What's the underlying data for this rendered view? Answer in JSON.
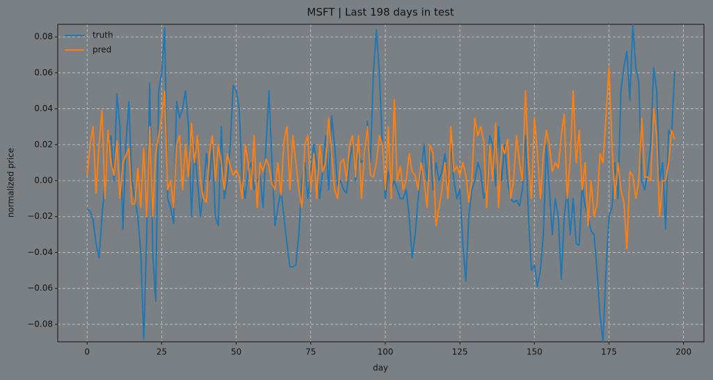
{
  "chart_data": {
    "type": "line",
    "title": "MSFT | Last 198 days in test",
    "xlabel": "day",
    "ylabel": "normalized price",
    "x": [
      0,
      1,
      2,
      3,
      4,
      5,
      6,
      7,
      8,
      9,
      10,
      11,
      12,
      13,
      14,
      15,
      16,
      17,
      18,
      19,
      20,
      21,
      22,
      23,
      24,
      25,
      26,
      27,
      28,
      29,
      30,
      31,
      32,
      33,
      34,
      35,
      36,
      37,
      38,
      39,
      40,
      41,
      42,
      43,
      44,
      45,
      46,
      47,
      48,
      49,
      50,
      51,
      52,
      53,
      54,
      55,
      56,
      57,
      58,
      59,
      60,
      61,
      62,
      63,
      64,
      65,
      66,
      67,
      68,
      69,
      70,
      71,
      72,
      73,
      74,
      75,
      76,
      77,
      78,
      79,
      80,
      81,
      82,
      83,
      84,
      85,
      86,
      87,
      88,
      89,
      90,
      91,
      92,
      93,
      94,
      95,
      96,
      97,
      98,
      99,
      100,
      101,
      102,
      103,
      104,
      105,
      106,
      107,
      108,
      109,
      110,
      111,
      112,
      113,
      114,
      115,
      116,
      117,
      118,
      119,
      120,
      121,
      122,
      123,
      124,
      125,
      126,
      127,
      128,
      129,
      130,
      131,
      132,
      133,
      134,
      135,
      136,
      137,
      138,
      139,
      140,
      141,
      142,
      143,
      144,
      145,
      146,
      147,
      148,
      149,
      150,
      151,
      152,
      153,
      154,
      155,
      156,
      157,
      158,
      159,
      160,
      161,
      162,
      163,
      164,
      165,
      166,
      167,
      168,
      169,
      170,
      171,
      172,
      173,
      174,
      175,
      176,
      177,
      178,
      179,
      180,
      181,
      182,
      183,
      184,
      185,
      186,
      187,
      188,
      189,
      190,
      191,
      192,
      193,
      194,
      195,
      196,
      197
    ],
    "series": [
      {
        "name": "truth",
        "color": "#1f77b4",
        "values": [
          -0.016,
          -0.017,
          -0.022,
          -0.035,
          -0.043,
          -0.02,
          0.0,
          0.02,
          0.025,
          0.0,
          0.048,
          0.03,
          -0.027,
          0.02,
          0.044,
          0.0,
          -0.01,
          -0.02,
          -0.04,
          -0.088,
          -0.03,
          0.054,
          -0.04,
          -0.067,
          0.05,
          0.06,
          0.085,
          -0.01,
          -0.015,
          -0.024,
          0.044,
          0.035,
          0.04,
          0.05,
          0.03,
          -0.02,
          0.02,
          0.0,
          -0.02,
          -0.005,
          0.015,
          0.0,
          0.02,
          -0.02,
          -0.025,
          0.03,
          -0.01,
          0.0,
          0.02,
          0.053,
          0.05,
          0.04,
          0.0,
          -0.01,
          0.005,
          0.01,
          -0.005,
          0.0,
          0.003,
          -0.015,
          0.02,
          0.05,
          0.01,
          -0.025,
          -0.015,
          -0.005,
          -0.02,
          -0.035,
          -0.048,
          -0.048,
          -0.047,
          -0.03,
          0.0,
          0.01,
          -0.01,
          0.005,
          0.02,
          0.01,
          -0.01,
          0.005,
          0.025,
          -0.005,
          0.036,
          0.02,
          -0.003,
          0.0,
          -0.005,
          -0.007,
          0.01,
          0.02,
          0.0,
          0.015,
          0.01,
          0.012,
          0.033,
          0.01,
          0.06,
          0.084,
          0.06,
          0.02,
          -0.01,
          0.005,
          -0.005,
          0.0,
          -0.005,
          -0.01,
          -0.01,
          -0.005,
          -0.02,
          -0.043,
          -0.03,
          -0.01,
          0.005,
          0.02,
          0.0,
          0.02,
          -0.005,
          0.01,
          0.0,
          0.005,
          0.015,
          -0.005,
          0.02,
          0.0,
          -0.01,
          -0.005,
          -0.035,
          -0.056,
          -0.02,
          -0.005,
          0.0,
          0.01,
          0.005,
          -0.01,
          -0.005,
          0.025,
          0.02,
          -0.003,
          0.03,
          0.0,
          0.02,
          0.0,
          -0.01,
          -0.012,
          -0.011,
          -0.014,
          -0.005,
          0.025,
          -0.02,
          -0.05,
          -0.047,
          -0.059,
          -0.05,
          -0.03,
          0.02,
          -0.005,
          -0.03,
          -0.01,
          -0.02,
          -0.055,
          -0.02,
          -0.005,
          -0.03,
          -0.01,
          -0.035,
          -0.036,
          -0.003,
          -0.014,
          -0.02,
          -0.028,
          -0.03,
          -0.05,
          -0.075,
          -0.09,
          -0.05,
          -0.02,
          -0.015,
          0.01,
          -0.01,
          0.05,
          0.063,
          0.072,
          0.045,
          0.087,
          0.063,
          0.055,
          0.0,
          -0.005,
          0.005,
          0.02,
          0.063,
          0.05,
          0.0,
          0.01,
          -0.027,
          0.028,
          0.025,
          0.061
        ]
      },
      {
        "name": "pred",
        "color": "#ff7f0e",
        "values": [
          0.003,
          0.02,
          0.03,
          -0.007,
          0.02,
          0.039,
          -0.01,
          0.028,
          0.01,
          0.003,
          0.022,
          -0.01,
          0.01,
          0.014,
          0.018,
          -0.013,
          -0.013,
          0.007,
          -0.015,
          0.018,
          -0.02,
          0.03,
          -0.02,
          0.015,
          0.025,
          0.035,
          0.05,
          -0.005,
          0.0,
          -0.015,
          0.02,
          0.025,
          -0.005,
          0.02,
          0.002,
          0.032,
          0.01,
          0.025,
          0.0,
          -0.01,
          -0.012,
          0.015,
          0.025,
          0.0,
          0.02,
          0.01,
          -0.005,
          0.015,
          0.008,
          0.003,
          0.006,
          0.002,
          -0.01,
          0.02,
          0.01,
          -0.005,
          0.025,
          -0.015,
          0.01,
          0.005,
          0.012,
          0.008,
          -0.002,
          -0.005,
          0.01,
          -0.008,
          0.022,
          0.03,
          -0.005,
          0.025,
          0.01,
          -0.005,
          -0.015,
          0.02,
          0.025,
          -0.005,
          0.015,
          -0.01,
          0.02,
          0.005,
          0.01,
          0.035,
          0.015,
          -0.005,
          -0.01,
          0.01,
          0.012,
          0.0,
          0.02,
          0.025,
          0.002,
          0.025,
          -0.01,
          0.015,
          0.03,
          0.003,
          0.002,
          0.01,
          0.025,
          0.02,
          -0.005,
          0.03,
          -0.01,
          0.045,
          0.0,
          0.008,
          -0.005,
          0.0,
          0.015,
          0.005,
          0.003,
          -0.005,
          0.01,
          0.0,
          -0.015,
          0.02,
          0.015,
          -0.025,
          -0.015,
          -0.005,
          0.01,
          -0.01,
          0.03,
          0.005,
          0.008,
          0.003,
          0.01,
          0.003,
          -0.012,
          0.0,
          0.035,
          0.025,
          0.03,
          0.022,
          -0.015,
          0.02,
          0.0,
          0.032,
          -0.015,
          0.02,
          0.015,
          0.023,
          -0.01,
          0.0,
          0.025,
          0.01,
          0.0,
          0.05,
          0.01,
          -0.01,
          0.035,
          0.015,
          -0.01,
          0.015,
          0.028,
          0.02,
          0.005,
          0.01,
          0.007,
          0.025,
          0.037,
          -0.01,
          0.012,
          0.05,
          0.01,
          0.028,
          -0.005,
          0.01,
          -0.025,
          0.0,
          -0.02,
          -0.013,
          0.015,
          0.01,
          0.035,
          0.063,
          0.02,
          -0.01,
          0.01,
          -0.005,
          -0.012,
          -0.038,
          0.005,
          0.003,
          -0.01,
          0.0,
          0.035,
          0.002,
          0.002,
          0.0,
          0.04,
          0.025,
          -0.02,
          0.0,
          0.0,
          0.01,
          0.028,
          0.023
        ]
      }
    ],
    "xlim": [
      -9.85,
      206.85
    ],
    "ylim": [
      -0.0897,
      0.087
    ],
    "xticks": [
      0,
      25,
      50,
      75,
      100,
      125,
      150,
      175,
      200
    ],
    "yticks": [
      {
        "value": -0.08,
        "label": "−0.08"
      },
      {
        "value": -0.06,
        "label": "−0.06"
      },
      {
        "value": -0.04,
        "label": "−0.04"
      },
      {
        "value": -0.02,
        "label": "−0.02"
      },
      {
        "value": 0,
        "label": "0.00"
      },
      {
        "value": 0.02,
        "label": "0.02"
      },
      {
        "value": 0.04,
        "label": "0.04"
      },
      {
        "value": 0.06,
        "label": "0.06"
      },
      {
        "value": 0.08,
        "label": "0.08"
      }
    ],
    "grid": true,
    "legend": "upper left"
  }
}
